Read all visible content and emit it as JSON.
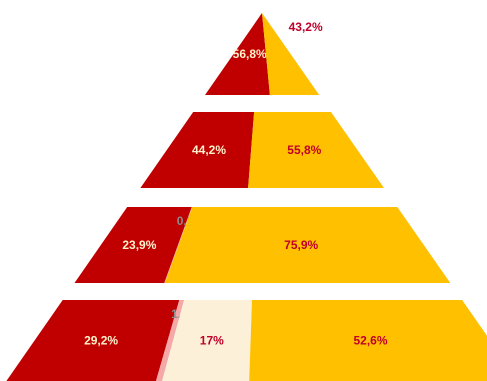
{
  "chart_data": {
    "type": "pyramid",
    "colors": {
      "dark_red": "#c00000",
      "pink": "#f4a8a8",
      "cream": "#fdf0d8",
      "amber": "#ffc000",
      "label_light": "#fff2cc",
      "label_red": "#c0002a",
      "label_gray": "#8c8c8c"
    },
    "rows": [
      {
        "segments": [
          {
            "value": 56.8,
            "label": "56,8%",
            "color": "dark_red",
            "label_color": "label_light"
          },
          {
            "value": 43.2,
            "label": "43,2%",
            "color": "amber",
            "label_color": "label_red"
          }
        ]
      },
      {
        "segments": [
          {
            "value": 44.2,
            "label": "44,2%",
            "color": "dark_red",
            "label_color": "label_light"
          },
          {
            "value": 55.8,
            "label": "55,8%",
            "color": "amber",
            "label_color": "label_red"
          }
        ]
      },
      {
        "segments": [
          {
            "value": 23.9,
            "label": "23,9%",
            "color": "dark_red",
            "label_color": "label_light"
          },
          {
            "value": 0.2,
            "label": "0,2%",
            "color": "pink",
            "label_color": "label_gray"
          },
          {
            "value": 75.9,
            "label": "75,9%",
            "color": "amber",
            "label_color": "label_red"
          }
        ]
      },
      {
        "segments": [
          {
            "value": 29.2,
            "label": "29,2%",
            "color": "dark_red",
            "label_color": "label_light"
          },
          {
            "value": 1.2,
            "label": "1,2%",
            "color": "pink",
            "label_color": "label_gray"
          },
          {
            "value": 17,
            "label": "17%",
            "color": "cream",
            "label_color": "label_red"
          },
          {
            "value": 52.6,
            "label": "52,6%",
            "color": "amber",
            "label_color": "label_red"
          }
        ]
      }
    ]
  }
}
